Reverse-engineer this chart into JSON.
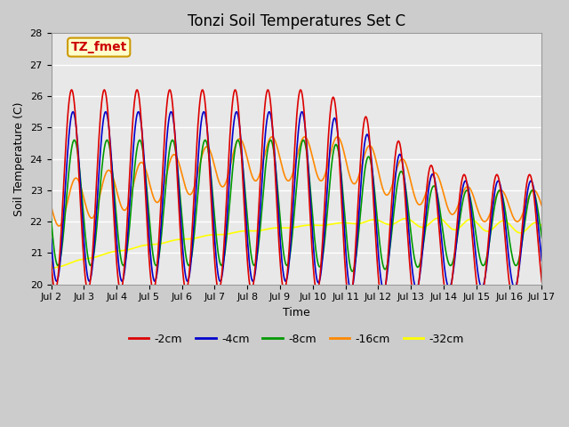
{
  "title": "Tonzi Soil Temperatures Set C",
  "xlabel": "Time",
  "ylabel": "Soil Temperature (C)",
  "ylim": [
    20.0,
    28.0
  ],
  "yticks": [
    20.0,
    21.0,
    22.0,
    23.0,
    24.0,
    25.0,
    26.0,
    27.0,
    28.0
  ],
  "x_tick_days": [
    2,
    3,
    4,
    5,
    6,
    7,
    8,
    9,
    10,
    11,
    12,
    13,
    14,
    15,
    16,
    17
  ],
  "x_tick_labels": [
    "Jul 2",
    "Jul 3",
    "Jul 4",
    "Jul 5",
    "Jul 6",
    "Jul 7",
    "Jul 8",
    "Jul 9",
    "Jul 10",
    "Jul 11",
    "Jul 12",
    "Jul 13",
    "Jul 14",
    "Jul 15",
    "Jul 16",
    "Jul 17"
  ],
  "colors": {
    "-2cm": "#dd0000",
    "-4cm": "#0000cc",
    "-8cm": "#009900",
    "-16cm": "#ff8800",
    "-32cm": "#ffff00"
  },
  "annotation_text": "TZ_fmet",
  "annotation_color": "#cc0000",
  "annotation_bg": "#ffffcc",
  "annotation_edge": "#cc9900",
  "fig_facecolor": "#cccccc",
  "ax_facecolor": "#e8e8e8",
  "grid_color": "#ffffff",
  "title_fontsize": 12,
  "axis_label_fontsize": 9,
  "tick_fontsize": 8,
  "legend_fontsize": 9,
  "line_width": 1.2
}
